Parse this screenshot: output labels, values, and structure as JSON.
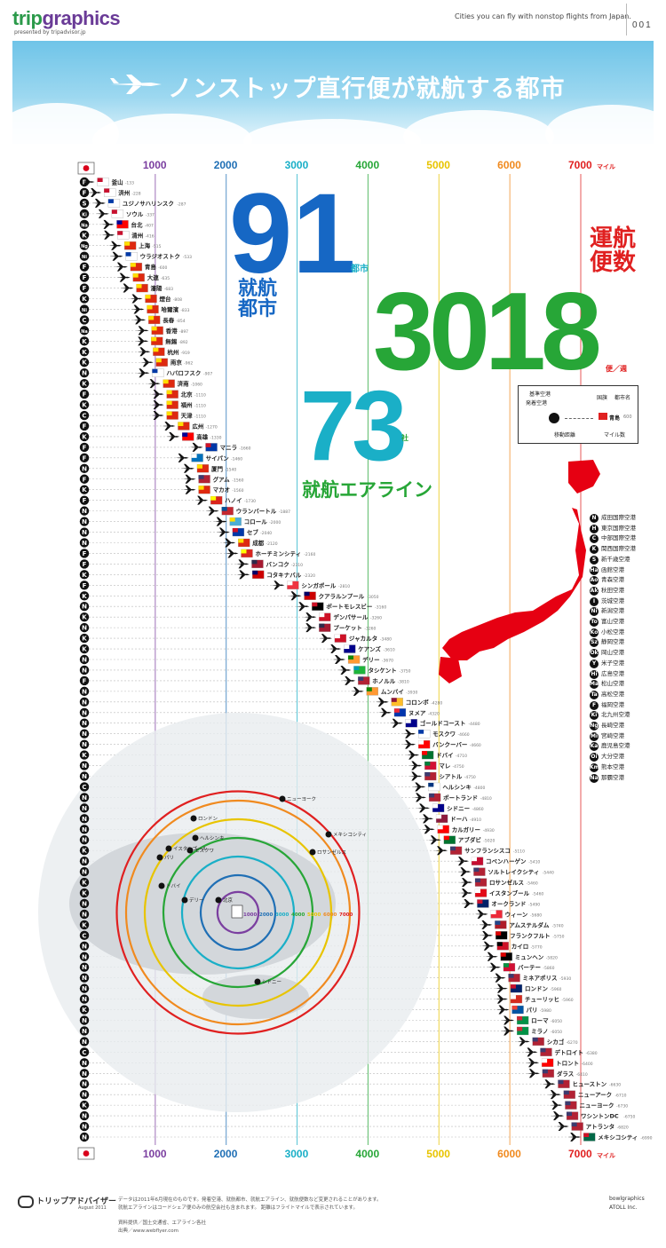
{
  "header": {
    "brand_a": "trip",
    "brand_b": "graphics",
    "brand_sub": "presented by tripadvisor.jp",
    "tagline": "Cities you can fly with nonstop flights from Japan.",
    "page_number": "001"
  },
  "banner": {
    "title": "ノンストップ直行便が就航する都市"
  },
  "stats": {
    "cities_value": "91",
    "cities_unit": "都市",
    "cities_label": "就航\n都市",
    "airlines_value": "73",
    "airlines_unit": "社",
    "airlines_label": "就航エアライン",
    "flights_value": "3018",
    "flights_unit": "便／週",
    "flights_label": "運航\n便数"
  },
  "axis": {
    "ticks": [
      1000,
      2000,
      3000,
      4000,
      5000,
      6000,
      7000
    ],
    "unit": "マイル",
    "tick_colors": [
      "#7b3fa0",
      "#1f6fb5",
      "#1aafc7",
      "#27a637",
      "#e8c400",
      "#f08a1f",
      "#e02020"
    ]
  },
  "key": {
    "base_airport": "基準空港",
    "departure": "発着空港",
    "country": "国旗",
    "city": "都市名",
    "distance": "移動距離",
    "miles": "マイル数",
    "sample_city": "青島",
    "sample_miles": "600"
  },
  "airports_legend": [
    {
      "code": "N",
      "name": "成田国際空港"
    },
    {
      "code": "H",
      "name": "東京国際空港"
    },
    {
      "code": "C",
      "name": "中部国際空港"
    },
    {
      "code": "K",
      "name": "関西国際空港"
    },
    {
      "code": "S",
      "name": "新千歳空港"
    },
    {
      "code": "Ha",
      "name": "函館空港"
    },
    {
      "code": "Ao",
      "name": "青森空港"
    },
    {
      "code": "Ak",
      "name": "秋田空港"
    },
    {
      "code": "I",
      "name": "茨城空港"
    },
    {
      "code": "Ni",
      "name": "新潟空港"
    },
    {
      "code": "To",
      "name": "富山空港"
    },
    {
      "code": "Ko",
      "name": "小松空港"
    },
    {
      "code": "Sz",
      "name": "静岡空港"
    },
    {
      "code": "Ok",
      "name": "岡山空港"
    },
    {
      "code": "Y",
      "name": "米子空港"
    },
    {
      "code": "Hi",
      "name": "広島空港"
    },
    {
      "code": "Ma",
      "name": "松山空港"
    },
    {
      "code": "Ta",
      "name": "高松空港"
    },
    {
      "code": "F",
      "name": "福岡空港"
    },
    {
      "code": "Ki",
      "name": "北九州空港"
    },
    {
      "code": "Ng",
      "name": "長崎空港"
    },
    {
      "code": "Mi",
      "name": "宮崎空港"
    },
    {
      "code": "Ka",
      "name": "鹿児島空港"
    },
    {
      "code": "Oi",
      "name": "大分空港"
    },
    {
      "code": "Km",
      "name": "熊本空港"
    },
    {
      "code": "Na",
      "name": "那覇空港"
    }
  ],
  "map_labels": {
    "rings": [
      "1000",
      "2000",
      "3000",
      "4000",
      "5000",
      "6000",
      "7000"
    ],
    "cities": [
      "ニューヨーク",
      "ロンドン",
      "メキシコシティ",
      "ヘルシンキ",
      "モスクワ",
      "イスタンブール",
      "パリ",
      "ロサンゼルス",
      "ドバイ",
      "デリー",
      "北京",
      "シドニー"
    ]
  },
  "chart_data": {
    "type": "scatter",
    "title": "ノンストップ直行便が就航する都市",
    "xlabel": "マイル",
    "xlim": [
      0,
      7000
    ],
    "points": [
      {
        "city": "釜山",
        "miles": 133,
        "hub": "F",
        "flag": "kr"
      },
      {
        "city": "済州",
        "miles": 228,
        "hub": "F",
        "flag": "kr"
      },
      {
        "city": "ユジノサハリンスク",
        "miles": 287,
        "hub": "S",
        "flag": "ru"
      },
      {
        "city": "ソウル",
        "miles": 337,
        "hub": "Ki",
        "flag": "kr"
      },
      {
        "city": "台北",
        "miles": 407,
        "hub": "Na",
        "flag": "tw"
      },
      {
        "city": "清州",
        "miles": 416,
        "hub": "K",
        "flag": "kr"
      },
      {
        "city": "上海",
        "miles": 515,
        "hub": "Ng",
        "flag": "cn"
      },
      {
        "city": "ウラジオストク",
        "miles": 533,
        "hub": "Ni",
        "flag": "ru"
      },
      {
        "city": "青島",
        "miles": 600,
        "hub": "F",
        "flag": "cn"
      },
      {
        "city": "大連",
        "miles": 635,
        "hub": "F",
        "flag": "cn"
      },
      {
        "city": "瀋陽",
        "miles": 683,
        "hub": "F",
        "flag": "cn"
      },
      {
        "city": "煙台",
        "miles": 808,
        "hub": "K",
        "flag": "cn"
      },
      {
        "city": "哈爾濱",
        "miles": 833,
        "hub": "Ni",
        "flag": "cn"
      },
      {
        "city": "長春",
        "miles": 854,
        "hub": "C",
        "flag": "cn"
      },
      {
        "city": "香港",
        "miles": 897,
        "hub": "Na",
        "flag": "cn"
      },
      {
        "city": "無錫",
        "miles": 892,
        "hub": "K",
        "flag": "cn"
      },
      {
        "city": "杭州",
        "miles": 919,
        "hub": "K",
        "flag": "cn"
      },
      {
        "city": "南京",
        "miles": 962,
        "hub": "K",
        "flag": "cn"
      },
      {
        "city": "ハバロフスク",
        "miles": 907,
        "hub": "N",
        "flag": "ru"
      },
      {
        "city": "済南",
        "miles": 1060,
        "hub": "K",
        "flag": "cn"
      },
      {
        "city": "北京",
        "miles": 1110,
        "hub": "F",
        "flag": "cn"
      },
      {
        "city": "福州",
        "miles": 1110,
        "hub": "K",
        "flag": "cn"
      },
      {
        "city": "天津",
        "miles": 1110,
        "hub": "C",
        "flag": "cn"
      },
      {
        "city": "広州",
        "miles": 1270,
        "hub": "F",
        "flag": "cn"
      },
      {
        "city": "高雄",
        "miles": 1330,
        "hub": "K",
        "flag": "tw"
      },
      {
        "city": "マニラ",
        "miles": 1660,
        "hub": "F",
        "flag": "ph"
      },
      {
        "city": "サイパン",
        "miles": 1460,
        "hub": "F",
        "flag": "mp"
      },
      {
        "city": "厦門",
        "miles": 1540,
        "hub": "N",
        "flag": "cn"
      },
      {
        "city": "グアム",
        "miles": 1560,
        "hub": "F",
        "flag": "us"
      },
      {
        "city": "マカオ",
        "miles": 1560,
        "hub": "K",
        "flag": "cn"
      },
      {
        "city": "ハノイ",
        "miles": 1730,
        "hub": "F",
        "flag": "vn"
      },
      {
        "city": "ウランバートル",
        "miles": 1887,
        "hub": "N",
        "flag": "mn"
      },
      {
        "city": "コロール",
        "miles": 2000,
        "hub": "N",
        "flag": "pw"
      },
      {
        "city": "セブ",
        "miles": 2040,
        "hub": "N",
        "flag": "ph"
      },
      {
        "city": "成都",
        "miles": 2120,
        "hub": "N",
        "flag": "cn"
      },
      {
        "city": "ホーチミンシティ",
        "miles": 2160,
        "hub": "F",
        "flag": "vn"
      },
      {
        "city": "バンコク",
        "miles": 2310,
        "hub": "F",
        "flag": "th"
      },
      {
        "city": "コタキナバル",
        "miles": 2320,
        "hub": "K",
        "flag": "my"
      },
      {
        "city": "シンガポール",
        "miles": 2810,
        "hub": "F",
        "flag": "sg"
      },
      {
        "city": "クアラルンプール",
        "miles": 3050,
        "hub": "K",
        "flag": "my"
      },
      {
        "city": "ポートモレスビー",
        "miles": 3160,
        "hub": "N",
        "flag": "pg"
      },
      {
        "city": "デンパサール",
        "miles": 3260,
        "hub": "K",
        "flag": "id"
      },
      {
        "city": "プーケット",
        "miles": 3260,
        "hub": "N",
        "flag": "th"
      },
      {
        "city": "ジャカルタ",
        "miles": 3480,
        "hub": "K",
        "flag": "id"
      },
      {
        "city": "ケアンズ",
        "miles": 3610,
        "hub": "K",
        "flag": "au"
      },
      {
        "city": "デリー",
        "miles": 3670,
        "hub": "N",
        "flag": "in"
      },
      {
        "city": "タシケント",
        "miles": 3750,
        "hub": "N",
        "flag": "uz"
      },
      {
        "city": "ホノルル",
        "miles": 3810,
        "hub": "F",
        "flag": "us"
      },
      {
        "city": "ムンバイ",
        "miles": 3930,
        "hub": "N",
        "flag": "in"
      },
      {
        "city": "コロンボ",
        "miles": 4280,
        "hub": "N",
        "flag": "lk"
      },
      {
        "city": "ヌメア",
        "miles": 4320,
        "hub": "N",
        "flag": "nc"
      },
      {
        "city": "ゴールドコースト",
        "miles": 4480,
        "hub": "N",
        "flag": "au"
      },
      {
        "city": "モスクワ",
        "miles": 4660,
        "hub": "N",
        "flag": "ru"
      },
      {
        "city": "バンクーバー",
        "miles": 4660,
        "hub": "N",
        "flag": "ca"
      },
      {
        "city": "ドバイ",
        "miles": 4710,
        "hub": "K",
        "flag": "ae"
      },
      {
        "city": "マレ",
        "miles": 4750,
        "hub": "N",
        "flag": "mv"
      },
      {
        "city": "シアトル",
        "miles": 4750,
        "hub": "N",
        "flag": "us"
      },
      {
        "city": "ヘルシンキ",
        "miles": 4800,
        "hub": "C",
        "flag": "fi"
      },
      {
        "city": "ポートランド",
        "miles": 4810,
        "hub": "N",
        "flag": "us"
      },
      {
        "city": "シドニー",
        "miles": 4860,
        "hub": "N",
        "flag": "au"
      },
      {
        "city": "ドーハ",
        "miles": 4910,
        "hub": "N",
        "flag": "qa"
      },
      {
        "city": "カルガリー",
        "miles": 4930,
        "hub": "N",
        "flag": "ca"
      },
      {
        "city": "アブダビ",
        "miles": 5020,
        "hub": "N",
        "flag": "ae"
      },
      {
        "city": "サンフランシスコ",
        "miles": 5110,
        "hub": "K",
        "flag": "us"
      },
      {
        "city": "コペンハーゲン",
        "miles": 5410,
        "hub": "N",
        "flag": "dk"
      },
      {
        "city": "ソルトレイクシティ",
        "miles": 5440,
        "hub": "N",
        "flag": "us"
      },
      {
        "city": "ロサンゼルス",
        "miles": 5460,
        "hub": "K",
        "flag": "us"
      },
      {
        "city": "イスタンブール",
        "miles": 5460,
        "hub": "K",
        "flag": "tr"
      },
      {
        "city": "オークランド",
        "miles": 5490,
        "hub": "N",
        "flag": "nz"
      },
      {
        "city": "ウィーン",
        "miles": 5680,
        "hub": "N",
        "flag": "at"
      },
      {
        "city": "アムステルダム",
        "miles": 5740,
        "hub": "K",
        "flag": "nl"
      },
      {
        "city": "フランクフルト",
        "miles": 5750,
        "hub": "C",
        "flag": "de"
      },
      {
        "city": "カイロ",
        "miles": 5770,
        "hub": "N",
        "flag": "eg"
      },
      {
        "city": "ミュンヘン",
        "miles": 5820,
        "hub": "N",
        "flag": "de"
      },
      {
        "city": "バーテー",
        "miles": 5860,
        "hub": "N",
        "flag": "vu"
      },
      {
        "city": "ミネアポリス",
        "miles": 5930,
        "hub": "N",
        "flag": "us"
      },
      {
        "city": "ロンドン",
        "miles": 5960,
        "hub": "N",
        "flag": "gb"
      },
      {
        "city": "チューリッヒ",
        "miles": 5960,
        "hub": "N",
        "flag": "ch"
      },
      {
        "city": "パリ",
        "miles": 5980,
        "hub": "K",
        "flag": "fr"
      },
      {
        "city": "ローマ",
        "miles": 6050,
        "hub": "N",
        "flag": "it"
      },
      {
        "city": "ミラノ",
        "miles": 6050,
        "hub": "N",
        "flag": "it"
      },
      {
        "city": "シカゴ",
        "miles": 6270,
        "hub": "N",
        "flag": "us"
      },
      {
        "city": "デトロイト",
        "miles": 6380,
        "hub": "C",
        "flag": "us"
      },
      {
        "city": "トロント",
        "miles": 6400,
        "hub": "N",
        "flag": "ca"
      },
      {
        "city": "ダラス",
        "miles": 6410,
        "hub": "N",
        "flag": "us"
      },
      {
        "city": "ヒューストン",
        "miles": 6630,
        "hub": "N",
        "flag": "us"
      },
      {
        "city": "ニューアーク",
        "miles": 6710,
        "hub": "N",
        "flag": "us"
      },
      {
        "city": "ニューヨーク",
        "miles": 6730,
        "hub": "K",
        "flag": "us"
      },
      {
        "city": "ワシントンDC",
        "miles": 6750,
        "hub": "N",
        "flag": "us"
      },
      {
        "city": "アトランタ",
        "miles": 6820,
        "hub": "N",
        "flag": "us"
      },
      {
        "city": "メキシコシティ",
        "miles": 6990,
        "hub": "N",
        "flag": "mx"
      }
    ]
  },
  "footer": {
    "logo": "トリップアドバイザー",
    "date": "August 2011",
    "note1": "データは2011年6月現在のものです。発着空港、就航都市、就航エアライン、就航便数など変更されることがあります。",
    "note2": "就航エアラインはコードシェア便のみの航空会社も含まれます。 距離はフライトマイルで表示されています。",
    "source1": "資料提供／国土交通省、エアライン各社",
    "source2": "出典／www.webflyer.com",
    "credit1": "bowlgraphics",
    "credit2": "ATOLL Inc."
  }
}
